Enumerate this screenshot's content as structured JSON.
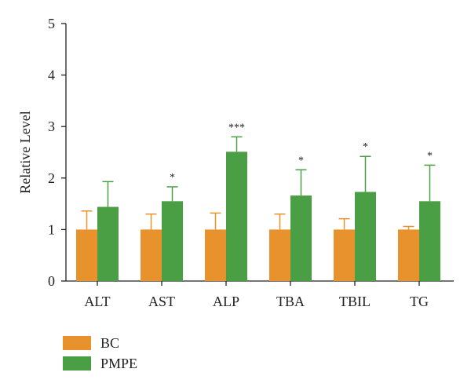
{
  "colors": {
    "BC": "#E8922E",
    "PMPE": "#4A9E44",
    "axis": "#222222",
    "error": "#222222"
  },
  "chart_data": {
    "type": "bar",
    "title": "",
    "xlabel": "",
    "ylabel": "Relative Level",
    "ylim": [
      0,
      5
    ],
    "yticks": [
      "0",
      "1",
      "2",
      "3",
      "4",
      "5"
    ],
    "categories": [
      "ALT",
      "AST",
      "ALP",
      "TBA",
      "TBIL",
      "TG"
    ],
    "series": [
      {
        "name": "BC",
        "values": [
          1.0,
          1.0,
          1.0,
          1.0,
          1.0,
          1.0
        ],
        "errors": [
          0.36,
          0.3,
          0.32,
          0.3,
          0.21,
          0.06
        ]
      },
      {
        "name": "PMPE",
        "values": [
          1.44,
          1.55,
          2.51,
          1.66,
          1.73,
          1.55
        ],
        "errors": [
          0.49,
          0.28,
          0.29,
          0.5,
          0.69,
          0.7
        ]
      }
    ],
    "annotations": [
      "",
      "*",
      "***",
      "*",
      "*",
      "*"
    ],
    "legend_position": "bottom-left",
    "grid": false
  }
}
